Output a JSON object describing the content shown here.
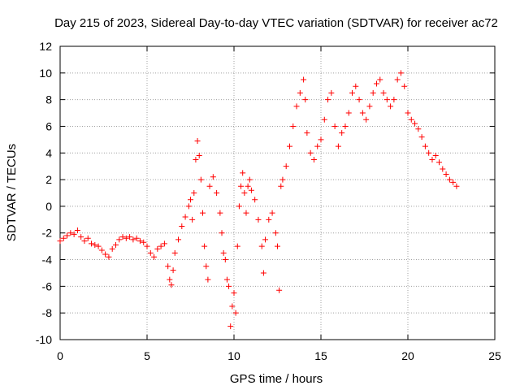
{
  "chart_data": {
    "type": "scatter",
    "title": "Day 215 of 2023, Sidereal Day-to-day VTEC variation (SDTVAR) for receiver ac72",
    "xlabel": "GPS time / hours",
    "ylabel": "SDTVAR / TECUs",
    "xlim": [
      0,
      25
    ],
    "ylim": [
      -10,
      12
    ],
    "xticks": [
      0,
      5,
      10,
      15,
      20,
      25
    ],
    "yticks": [
      -10,
      -8,
      -6,
      -4,
      -2,
      0,
      2,
      4,
      6,
      8,
      10,
      12
    ],
    "grid": true,
    "marker": "+",
    "color": "#ff0000",
    "series": [
      {
        "name": "SDTVAR",
        "points": [
          [
            0.0,
            -2.6
          ],
          [
            0.2,
            -2.4
          ],
          [
            0.4,
            -2.2
          ],
          [
            0.6,
            -2.0
          ],
          [
            0.8,
            -2.1
          ],
          [
            1.0,
            -1.8
          ],
          [
            1.2,
            -2.3
          ],
          [
            1.4,
            -2.6
          ],
          [
            1.6,
            -2.4
          ],
          [
            1.8,
            -2.8
          ],
          [
            2.0,
            -2.9
          ],
          [
            2.2,
            -3.0
          ],
          [
            2.4,
            -3.3
          ],
          [
            2.6,
            -3.6
          ],
          [
            2.8,
            -3.8
          ],
          [
            3.0,
            -3.2
          ],
          [
            3.2,
            -2.9
          ],
          [
            3.4,
            -2.5
          ],
          [
            3.6,
            -2.3
          ],
          [
            3.8,
            -2.4
          ],
          [
            4.0,
            -2.3
          ],
          [
            4.2,
            -2.5
          ],
          [
            4.4,
            -2.4
          ],
          [
            4.6,
            -2.6
          ],
          [
            4.8,
            -2.7
          ],
          [
            5.0,
            -3.0
          ],
          [
            5.2,
            -3.5
          ],
          [
            5.4,
            -3.8
          ],
          [
            5.6,
            -3.2
          ],
          [
            5.8,
            -3.0
          ],
          [
            6.0,
            -2.8
          ],
          [
            6.2,
            -4.5
          ],
          [
            6.3,
            -5.5
          ],
          [
            6.4,
            -5.9
          ],
          [
            6.5,
            -4.8
          ],
          [
            6.6,
            -3.5
          ],
          [
            6.8,
            -2.5
          ],
          [
            7.0,
            -1.5
          ],
          [
            7.2,
            -0.8
          ],
          [
            7.4,
            0.0
          ],
          [
            7.5,
            0.5
          ],
          [
            7.6,
            -1.0
          ],
          [
            7.7,
            1.0
          ],
          [
            7.8,
            3.5
          ],
          [
            7.9,
            4.9
          ],
          [
            8.0,
            3.8
          ],
          [
            8.1,
            2.0
          ],
          [
            8.2,
            -0.5
          ],
          [
            8.3,
            -3.0
          ],
          [
            8.4,
            -4.5
          ],
          [
            8.5,
            -5.5
          ],
          [
            8.6,
            1.5
          ],
          [
            8.8,
            2.2
          ],
          [
            9.0,
            1.0
          ],
          [
            9.2,
            -0.5
          ],
          [
            9.3,
            -2.0
          ],
          [
            9.4,
            -3.5
          ],
          [
            9.5,
            -4.0
          ],
          [
            9.6,
            -5.5
          ],
          [
            9.7,
            -6.0
          ],
          [
            9.8,
            -9.0
          ],
          [
            9.9,
            -7.5
          ],
          [
            10.0,
            -6.5
          ],
          [
            10.1,
            -8.0
          ],
          [
            10.2,
            -3.0
          ],
          [
            10.3,
            0.0
          ],
          [
            10.4,
            1.5
          ],
          [
            10.5,
            2.5
          ],
          [
            10.6,
            1.0
          ],
          [
            10.7,
            -0.5
          ],
          [
            10.8,
            1.5
          ],
          [
            10.9,
            2.0
          ],
          [
            11.0,
            1.2
          ],
          [
            11.2,
            0.5
          ],
          [
            11.4,
            -1.0
          ],
          [
            11.6,
            -3.0
          ],
          [
            11.7,
            -5.0
          ],
          [
            11.8,
            -2.5
          ],
          [
            12.0,
            -1.0
          ],
          [
            12.2,
            -0.5
          ],
          [
            12.4,
            -2.0
          ],
          [
            12.5,
            -3.0
          ],
          [
            12.6,
            -6.3
          ],
          [
            12.7,
            1.5
          ],
          [
            12.8,
            2.0
          ],
          [
            13.0,
            3.0
          ],
          [
            13.2,
            4.5
          ],
          [
            13.4,
            6.0
          ],
          [
            13.6,
            7.5
          ],
          [
            13.8,
            8.5
          ],
          [
            14.0,
            9.5
          ],
          [
            14.1,
            8.0
          ],
          [
            14.2,
            5.5
          ],
          [
            14.4,
            4.0
          ],
          [
            14.6,
            3.5
          ],
          [
            14.8,
            4.5
          ],
          [
            15.0,
            5.0
          ],
          [
            15.2,
            6.5
          ],
          [
            15.4,
            8.0
          ],
          [
            15.6,
            8.5
          ],
          [
            15.8,
            6.0
          ],
          [
            16.0,
            4.5
          ],
          [
            16.2,
            5.5
          ],
          [
            16.4,
            6.0
          ],
          [
            16.6,
            7.0
          ],
          [
            16.8,
            8.5
          ],
          [
            17.0,
            9.0
          ],
          [
            17.2,
            8.0
          ],
          [
            17.4,
            7.0
          ],
          [
            17.6,
            6.5
          ],
          [
            17.8,
            7.5
          ],
          [
            18.0,
            8.5
          ],
          [
            18.2,
            9.2
          ],
          [
            18.4,
            9.5
          ],
          [
            18.6,
            8.5
          ],
          [
            18.8,
            8.0
          ],
          [
            19.0,
            7.5
          ],
          [
            19.2,
            8.0
          ],
          [
            19.4,
            9.5
          ],
          [
            19.6,
            10.0
          ],
          [
            19.8,
            9.0
          ],
          [
            20.0,
            7.0
          ],
          [
            20.2,
            6.5
          ],
          [
            20.4,
            6.2
          ],
          [
            20.6,
            5.8
          ],
          [
            20.8,
            5.2
          ],
          [
            21.0,
            4.5
          ],
          [
            21.2,
            4.0
          ],
          [
            21.4,
            3.5
          ],
          [
            21.6,
            3.8
          ],
          [
            21.8,
            3.3
          ],
          [
            22.0,
            2.8
          ],
          [
            22.2,
            2.4
          ],
          [
            22.4,
            2.0
          ],
          [
            22.6,
            1.8
          ],
          [
            22.8,
            1.5
          ]
        ]
      }
    ]
  }
}
